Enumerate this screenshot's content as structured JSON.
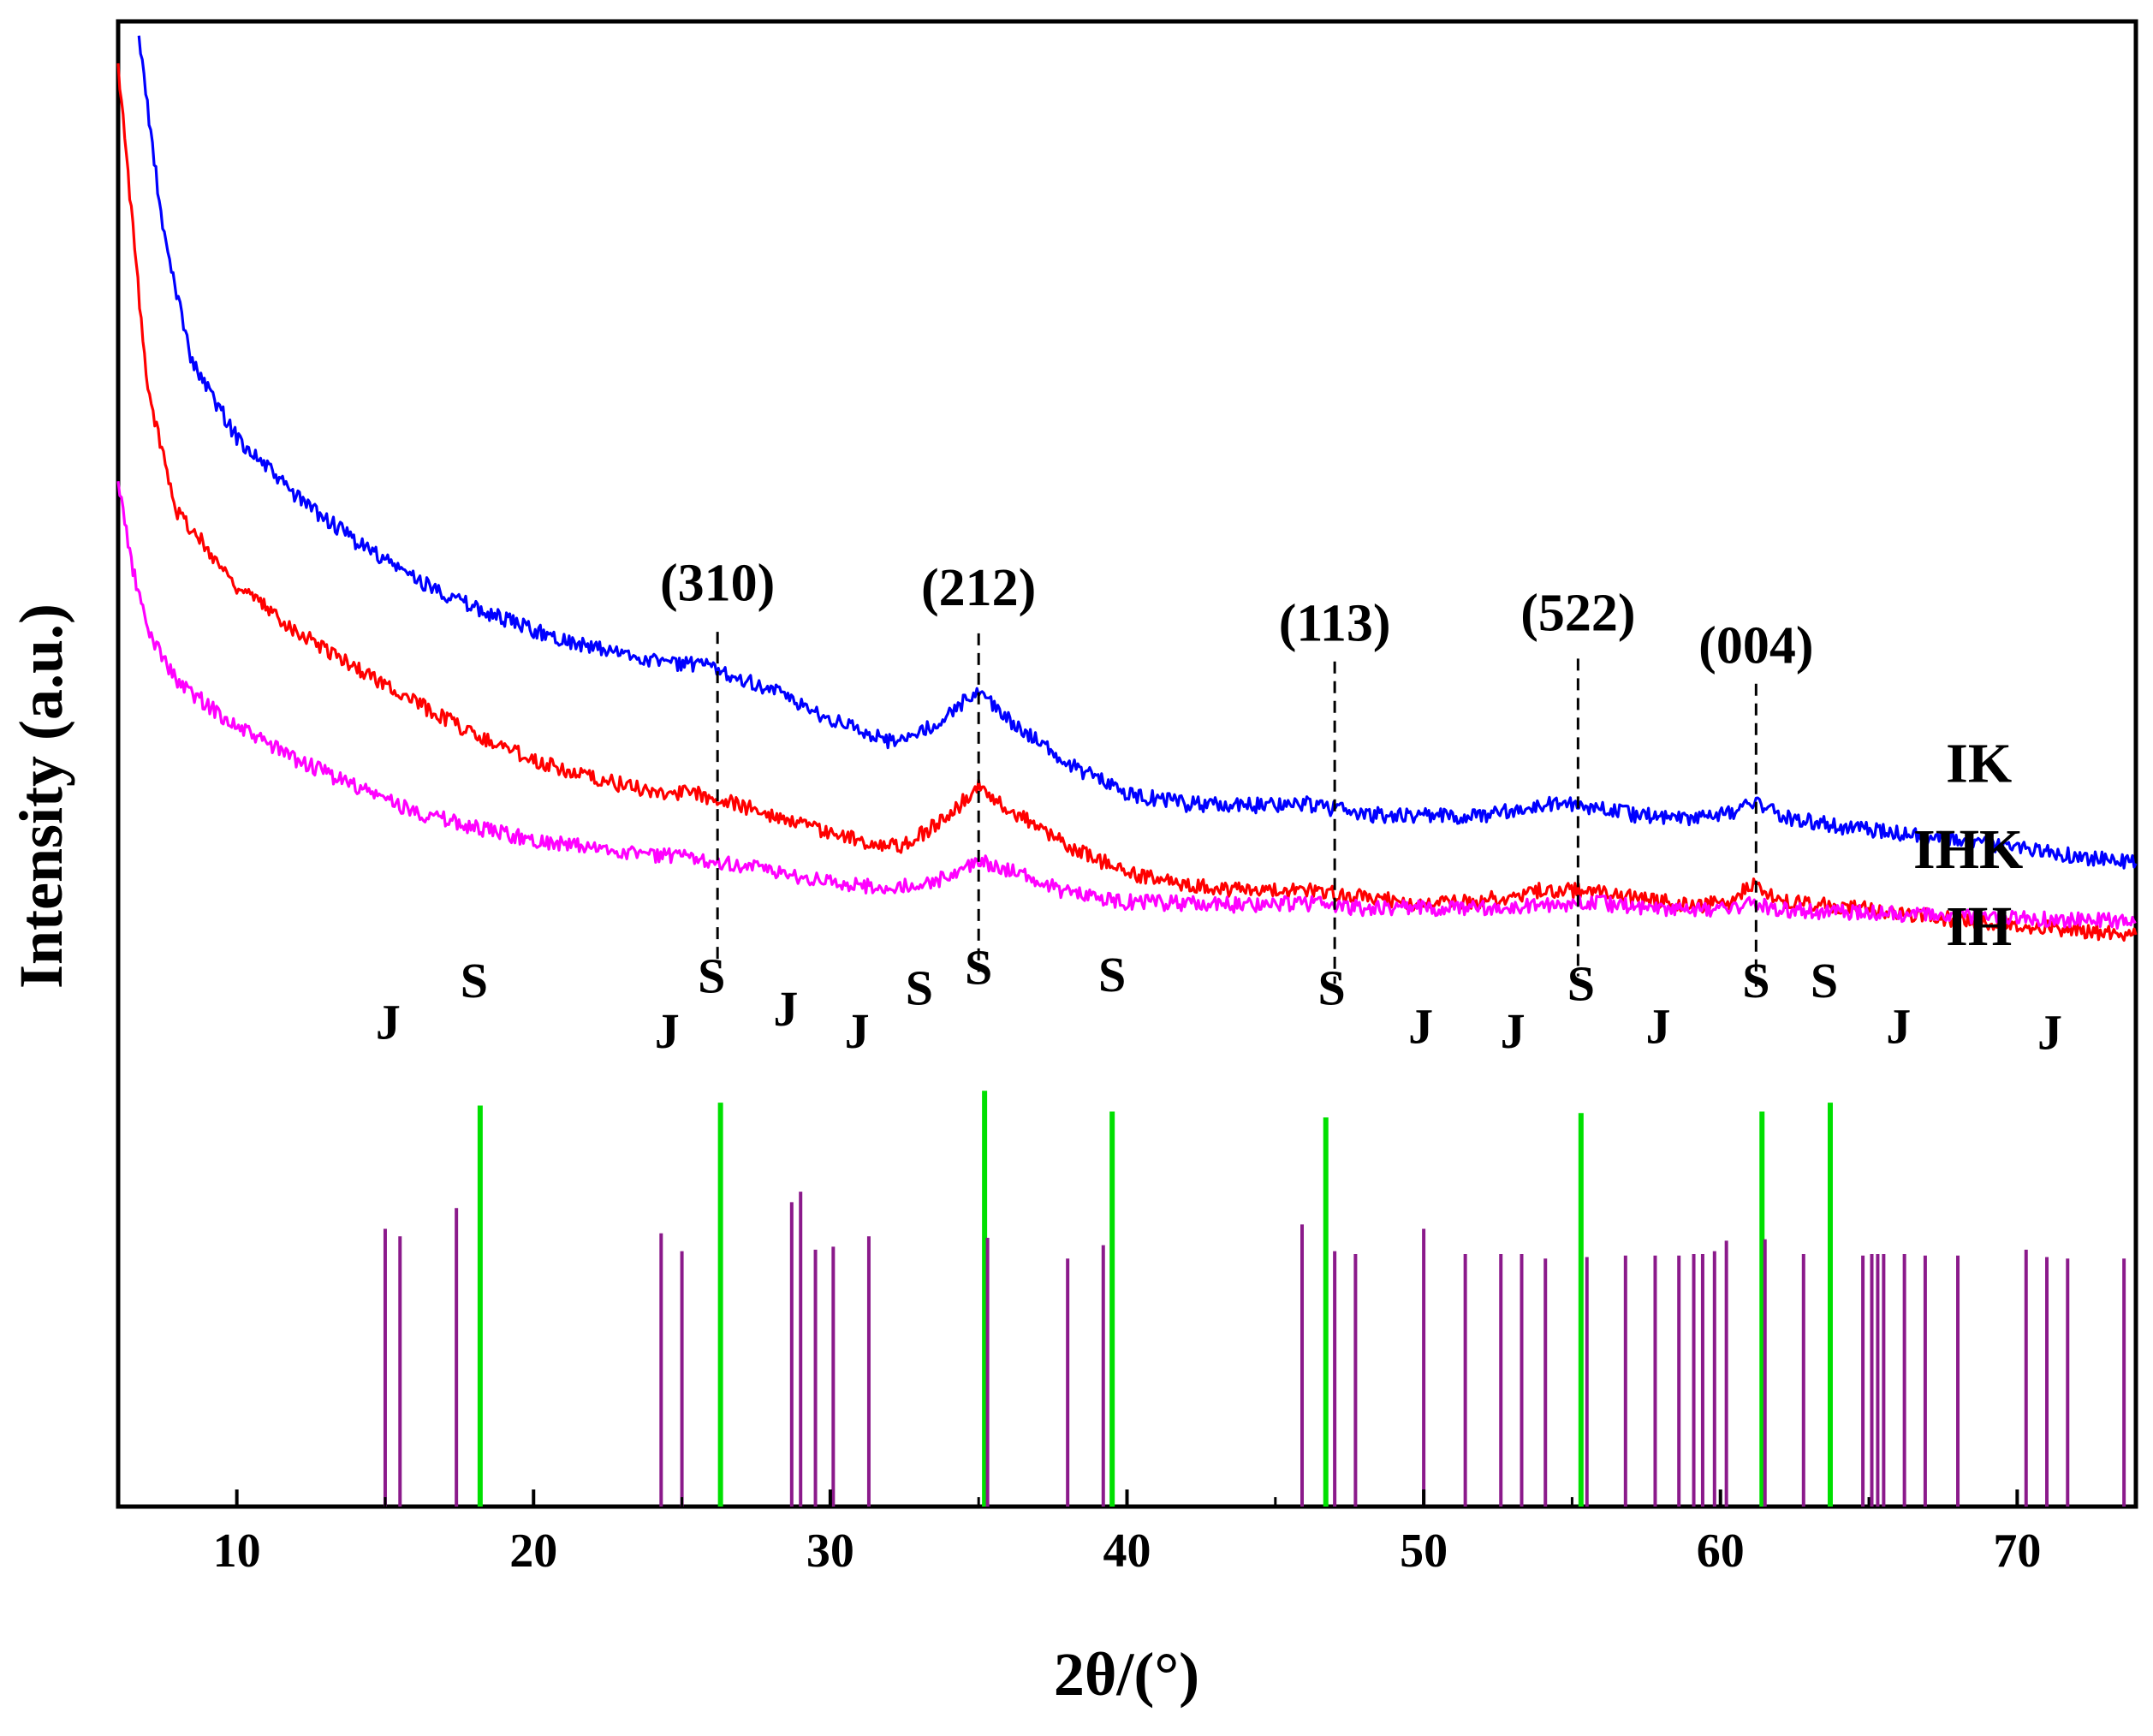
{
  "chart_data": {
    "type": "line",
    "title": "",
    "xlabel": "2θ/(°)",
    "ylabel": "Intensity (a.u.)",
    "xlim": [
      6,
      74
    ],
    "ylim": [
      0,
      100
    ],
    "xticks": [
      10,
      20,
      30,
      40,
      50,
      60,
      70
    ],
    "x_tick_labels": [
      "10",
      "20",
      "30",
      "40",
      "50",
      "60",
      "70"
    ],
    "grid": false,
    "series": [
      {
        "name": "IK",
        "color": "#0000ff",
        "points": [
          [
            6.7,
            99
          ],
          [
            7.5,
            86
          ],
          [
            8.5,
            77
          ],
          [
            10,
            72
          ],
          [
            12,
            68
          ],
          [
            14,
            65
          ],
          [
            16,
            62.5
          ],
          [
            18,
            60.5
          ],
          [
            20,
            59
          ],
          [
            22,
            57.8
          ],
          [
            24,
            57
          ],
          [
            26,
            56.5
          ],
          [
            28,
            55
          ],
          [
            30,
            53
          ],
          [
            32,
            51.5
          ],
          [
            33.5,
            52.5
          ],
          [
            35,
            55
          ],
          [
            36,
            53
          ],
          [
            38,
            50
          ],
          [
            40,
            48
          ],
          [
            42,
            47.3
          ],
          [
            44,
            47.2
          ],
          [
            46,
            47.3
          ],
          [
            48,
            46.6
          ],
          [
            50,
            46.5
          ],
          [
            52,
            46.5
          ],
          [
            54,
            47.3
          ],
          [
            55,
            47.3
          ],
          [
            57,
            46.6
          ],
          [
            59,
            46.4
          ],
          [
            60.5,
            46.8
          ],
          [
            61.2,
            47.5
          ],
          [
            62,
            46.5
          ],
          [
            64,
            45.8
          ],
          [
            66,
            45.3
          ],
          [
            68,
            44.8
          ],
          [
            70,
            44.3
          ],
          [
            72,
            43.8
          ],
          [
            74,
            43.3
          ]
        ]
      },
      {
        "name": "IHK",
        "color": "#ff0000",
        "points": [
          [
            6,
            97
          ],
          [
            6.5,
            86
          ],
          [
            7,
            75
          ],
          [
            8,
            67
          ],
          [
            10,
            62
          ],
          [
            12,
            59
          ],
          [
            14,
            56.5
          ],
          [
            16,
            54.2
          ],
          [
            18,
            52
          ],
          [
            20,
            50.3
          ],
          [
            22,
            49
          ],
          [
            24,
            48.2
          ],
          [
            25.5,
            48
          ],
          [
            27,
            47.2
          ],
          [
            29,
            46
          ],
          [
            31,
            44.8
          ],
          [
            32.5,
            44.5
          ],
          [
            34,
            46.5
          ],
          [
            35,
            48.5
          ],
          [
            36,
            47
          ],
          [
            38,
            44.5
          ],
          [
            40,
            42.7
          ],
          [
            42,
            41.8
          ],
          [
            44,
            41.5
          ],
          [
            46,
            41.5
          ],
          [
            48,
            41
          ],
          [
            50,
            40.6
          ],
          [
            52,
            40.8
          ],
          [
            54,
            41.5
          ],
          [
            55.5,
            41.5
          ],
          [
            57,
            41
          ],
          [
            59,
            40.5
          ],
          [
            60.3,
            40.6
          ],
          [
            61,
            42
          ],
          [
            62,
            40.8
          ],
          [
            64,
            40.4
          ],
          [
            66,
            40
          ],
          [
            68,
            39.5
          ],
          [
            70,
            39.2
          ],
          [
            72,
            38.8
          ],
          [
            74,
            38.5
          ]
        ]
      },
      {
        "name": "IH",
        "color": "#ff00ff",
        "points": [
          [
            6,
            69
          ],
          [
            6.5,
            63
          ],
          [
            7,
            59
          ],
          [
            8,
            55.5
          ],
          [
            10,
            52.5
          ],
          [
            12,
            50.3
          ],
          [
            14,
            48.5
          ],
          [
            16,
            46.8
          ],
          [
            18,
            45.7
          ],
          [
            20,
            44.9
          ],
          [
            22,
            44.3
          ],
          [
            24,
            43.9
          ],
          [
            26,
            43.5
          ],
          [
            28,
            42.8
          ],
          [
            30,
            42
          ],
          [
            32,
            41.6
          ],
          [
            33.5,
            42
          ],
          [
            35,
            43.5
          ],
          [
            36.5,
            42.5
          ],
          [
            38,
            41.3
          ],
          [
            40,
            40.7
          ],
          [
            42,
            40.6
          ],
          [
            44,
            40.5
          ],
          [
            46,
            40.6
          ],
          [
            48,
            40.3
          ],
          [
            50,
            40.3
          ],
          [
            52,
            40.3
          ],
          [
            54,
            40.5
          ],
          [
            56,
            40.6
          ],
          [
            58,
            40.3
          ],
          [
            60,
            40.2
          ],
          [
            61.2,
            40.6
          ],
          [
            62,
            40.2
          ],
          [
            64,
            40
          ],
          [
            66,
            39.9
          ],
          [
            68,
            39.7
          ],
          [
            70,
            39.6
          ],
          [
            72,
            39.5
          ],
          [
            74,
            39.4
          ]
        ]
      }
    ],
    "series_labels": [
      {
        "name": "IK",
        "text": "IK",
        "x": 67.6,
        "y": 48.8
      },
      {
        "name": "IHK",
        "text": "IHK",
        "x": 66.5,
        "y": 43.0
      },
      {
        "name": "IH",
        "text": "IH",
        "x": 67.6,
        "y": 37.8
      }
    ],
    "annotations": [
      {
        "text": "(310)",
        "x": 26.2,
        "label_y": 61.0,
        "line_top": 58.9,
        "line_bottom": 36.4
      },
      {
        "text": "(212)",
        "x": 35.0,
        "label_y": 60.7,
        "line_top": 58.8,
        "line_bottom": 36.0
      },
      {
        "text": "(113)",
        "x": 47.0,
        "label_y": 58.3,
        "line_top": 56.9,
        "line_bottom": 35.2
      },
      {
        "text": "(522)",
        "x": 55.2,
        "label_y": 59.0,
        "line_top": 57.1,
        "line_bottom": 35.7
      },
      {
        "text": "(004)",
        "x": 61.2,
        "label_y": 56.8,
        "line_top": 55.4,
        "line_bottom": 35.0
      }
    ],
    "reference_letters": [
      {
        "text": "S",
        "x": 18.0,
        "y": 34.3
      },
      {
        "text": "S",
        "x": 26.0,
        "y": 34.6
      },
      {
        "text": "S",
        "x": 35.0,
        "y": 35.2
      },
      {
        "text": "S",
        "x": 39.5,
        "y": 34.7
      },
      {
        "text": "S",
        "x": 33.0,
        "y": 33.8
      },
      {
        "text": "S",
        "x": 46.9,
        "y": 33.8
      },
      {
        "text": "S",
        "x": 55.3,
        "y": 34.1
      },
      {
        "text": "S",
        "x": 61.2,
        "y": 34.3
      },
      {
        "text": "S",
        "x": 63.5,
        "y": 34.3
      },
      {
        "text": "J",
        "x": 15.1,
        "y": 31.5
      },
      {
        "text": "J",
        "x": 24.5,
        "y": 30.9
      },
      {
        "text": "J",
        "x": 28.5,
        "y": 32.4
      },
      {
        "text": "J",
        "x": 30.9,
        "y": 30.9
      },
      {
        "text": "J",
        "x": 49.9,
        "y": 31.2
      },
      {
        "text": "J",
        "x": 53.0,
        "y": 30.9
      },
      {
        "text": "J",
        "x": 57.9,
        "y": 31.2
      },
      {
        "text": "J",
        "x": 66.0,
        "y": 31.2
      },
      {
        "text": "J",
        "x": 71.1,
        "y": 30.8
      }
    ],
    "reference_lines": [
      {
        "name": "S",
        "color": "#00e000",
        "positions": [
          18.2,
          26.3,
          35.2,
          39.5,
          46.7,
          55.3,
          61.4,
          63.7
        ],
        "heights": [
          27.0,
          27.2,
          28.0,
          26.6,
          26.2,
          26.5,
          26.6,
          27.2
        ]
      },
      {
        "name": "J",
        "color": "#8b1a8b",
        "positions": [
          15.0,
          15.5,
          17.4,
          24.3,
          25.0,
          28.7,
          29.0,
          29.5,
          30.1,
          31.3,
          35.3,
          38.0,
          39.2,
          45.9,
          47.0,
          47.7,
          50.0,
          51.4,
          52.6,
          53.3,
          54.1,
          55.5,
          56.8,
          57.8,
          58.6,
          59.1,
          59.4,
          59.8,
          60.2,
          61.5,
          62.8,
          64.8,
          65.1,
          65.3,
          65.5,
          66.2,
          66.9,
          68.0,
          70.3,
          71.0,
          71.7,
          73.6
        ],
        "heights": [
          18.7,
          18.2,
          20.1,
          18.4,
          17.2,
          20.5,
          21.2,
          17.3,
          17.5,
          18.2,
          18.1,
          16.7,
          17.6,
          19.0,
          17.2,
          17.0,
          18.7,
          17.0,
          17.0,
          17.0,
          16.7,
          16.8,
          16.9,
          16.9,
          16.9,
          17.0,
          17.0,
          17.2,
          17.9,
          18.0,
          17.0,
          16.9,
          17.0,
          17.0,
          17.0,
          17.0,
          16.9,
          16.9,
          17.3,
          16.8,
          16.7,
          16.7
        ]
      }
    ]
  }
}
